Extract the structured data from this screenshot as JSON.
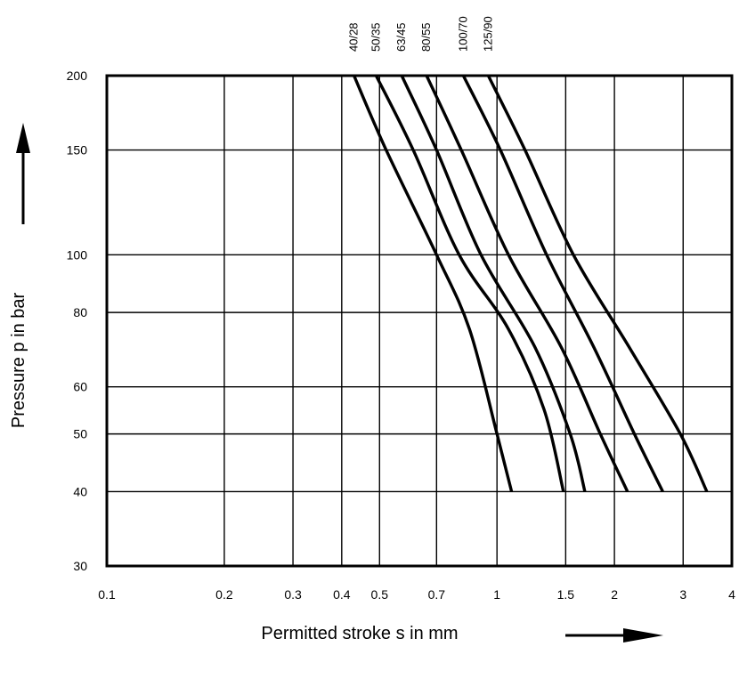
{
  "chart_data": {
    "type": "line",
    "xlabel": "Permitted stroke s in mm",
    "ylabel": "Pressure p in bar",
    "x_scale": "log",
    "y_scale": "log",
    "xlim": [
      0.1,
      4
    ],
    "ylim": [
      30,
      200
    ],
    "grid": true,
    "x_ticks": [
      0.1,
      0.2,
      0.3,
      0.4,
      0.5,
      0.7,
      1,
      1.5,
      2,
      3,
      4
    ],
    "x_tick_labels": [
      "0.1",
      "0.2",
      "0.3",
      "0.4",
      "0.5",
      "0.7",
      "1",
      "1.5",
      "2",
      "3",
      "4"
    ],
    "y_ticks": [
      200,
      150,
      100,
      80,
      60,
      50,
      40,
      30
    ],
    "y_tick_labels": [
      "200",
      "150",
      "100",
      "80",
      "60",
      "50",
      "40",
      "30"
    ],
    "series": [
      {
        "name": "40/28",
        "x": [
          0.43,
          0.52,
          0.7,
          0.85,
          1.0,
          1.09
        ],
        "y": [
          200,
          150,
          100,
          75,
          50,
          40
        ]
      },
      {
        "name": "50/35",
        "x": [
          0.49,
          0.61,
          0.8,
          1.07,
          1.32,
          1.48
        ],
        "y": [
          200,
          150,
          100,
          75,
          55,
          40
        ]
      },
      {
        "name": "63/45",
        "x": [
          0.57,
          0.7,
          0.91,
          1.25,
          1.54,
          1.68
        ],
        "y": [
          200,
          150,
          100,
          70,
          50,
          40
        ]
      },
      {
        "name": "80/55",
        "x": [
          0.66,
          0.81,
          1.07,
          1.46,
          1.84,
          2.16
        ],
        "y": [
          200,
          150,
          100,
          70,
          50,
          40
        ]
      },
      {
        "name": "100/70",
        "x": [
          0.82,
          1.02,
          1.34,
          1.77,
          2.25,
          2.66
        ],
        "y": [
          200,
          150,
          100,
          70,
          50,
          40
        ]
      },
      {
        "name": "125/90",
        "x": [
          0.95,
          1.18,
          1.57,
          2.18,
          2.95,
          3.45
        ],
        "y": [
          200,
          150,
          100,
          70,
          50,
          40
        ]
      }
    ]
  }
}
